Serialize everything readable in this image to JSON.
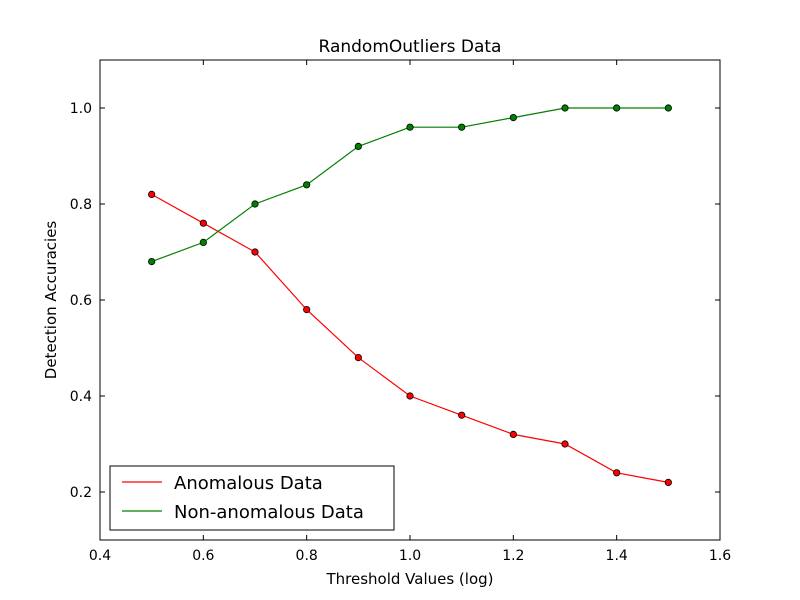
{
  "chart_data": {
    "type": "line",
    "title": "RandomOutliers Data",
    "xlabel": "Threshold Values (log)",
    "ylabel": "Detection Accuracies",
    "xlim": [
      0.4,
      1.6
    ],
    "ylim": [
      0.1,
      1.1
    ],
    "xticks": [
      "0.4",
      "0.6",
      "0.8",
      "1.0",
      "1.2",
      "1.4",
      "1.6"
    ],
    "yticks": [
      "0.2",
      "0.4",
      "0.6",
      "0.8",
      "1.0"
    ],
    "grid": false,
    "legend_position": "lower-left",
    "x": [
      0.5,
      0.6,
      0.7,
      0.8,
      0.9,
      1.0,
      1.1,
      1.2,
      1.3,
      1.4,
      1.5
    ],
    "series": [
      {
        "name": "Anomalous Data",
        "color": "#ff0000",
        "values": [
          0.82,
          0.76,
          0.7,
          0.58,
          0.48,
          0.4,
          0.36,
          0.32,
          0.3,
          0.24,
          0.22
        ]
      },
      {
        "name": "Non-anomalous Data",
        "color": "#008000",
        "values": [
          0.68,
          0.72,
          0.8,
          0.84,
          0.92,
          0.96,
          0.96,
          0.98,
          1.0,
          1.0,
          1.0
        ]
      }
    ]
  }
}
